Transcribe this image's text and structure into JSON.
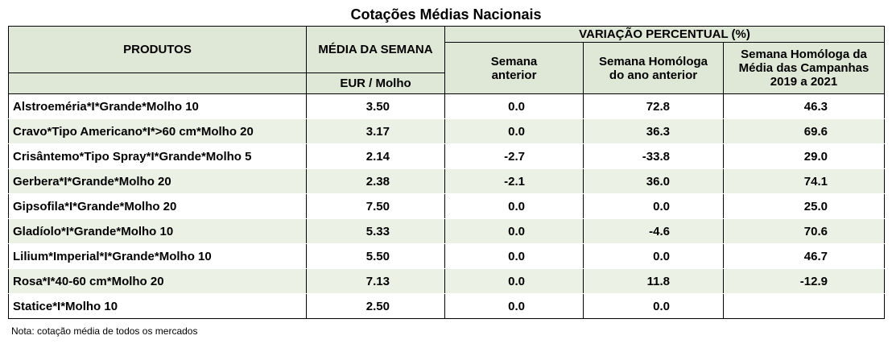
{
  "title": "Cotações Médias Nacionais",
  "headers": {
    "produtos": "PRODUTOS",
    "media_semana": "MÉDIA DA SEMANA",
    "unit": "EUR / Molho",
    "variacao": "VARIAÇÃO PERCENTUAL (%)",
    "semana_anterior_l1": "Semana",
    "semana_anterior_l2": "anterior",
    "homologa_l1": "Semana Homóloga",
    "homologa_l2": "do ano anterior",
    "campanhas_l1": "Semana Homóloga da",
    "campanhas_l2": "Média das Campanhas",
    "campanhas_l3": "2019 a 2021"
  },
  "rows": [
    {
      "produto": "Alstroeméria*I*Grande*Molho 10",
      "media": "3.50",
      "semana_anterior": "0.0",
      "homologa": "72.8",
      "campanhas": "46.3"
    },
    {
      "produto": "Cravo*Tipo Americano*I*>60 cm*Molho 20",
      "media": "3.17",
      "semana_anterior": "0.0",
      "homologa": "36.3",
      "campanhas": "69.6"
    },
    {
      "produto": "Crisântemo*Tipo Spray*I*Grande*Molho 5",
      "media": "2.14",
      "semana_anterior": "-2.7",
      "homologa": "-33.8",
      "campanhas": "29.0"
    },
    {
      "produto": "Gerbera*I*Grande*Molho 20",
      "media": "2.38",
      "semana_anterior": "-2.1",
      "homologa": "36.0",
      "campanhas": "74.1"
    },
    {
      "produto": "Gipsofila*I*Grande*Molho 20",
      "media": "7.50",
      "semana_anterior": "0.0",
      "homologa": "0.0",
      "campanhas": "25.0"
    },
    {
      "produto": "Gladíolo*I*Grande*Molho 10",
      "media": "5.33",
      "semana_anterior": "0.0",
      "homologa": "-4.6",
      "campanhas": "70.6"
    },
    {
      "produto": "Lilium*Imperial*I*Grande*Molho 10",
      "media": "5.50",
      "semana_anterior": "0.0",
      "homologa": "0.0",
      "campanhas": "46.7"
    },
    {
      "produto": "Rosa*I*40-60 cm*Molho 20",
      "media": "7.13",
      "semana_anterior": "0.0",
      "homologa": "11.8",
      "campanhas": "-12.9"
    },
    {
      "produto": "Statice*I*Molho 10",
      "media": "2.50",
      "semana_anterior": "0.0",
      "homologa": "0.0",
      "campanhas": ""
    }
  ],
  "note": "Nota: cotação média de todos os mercados"
}
